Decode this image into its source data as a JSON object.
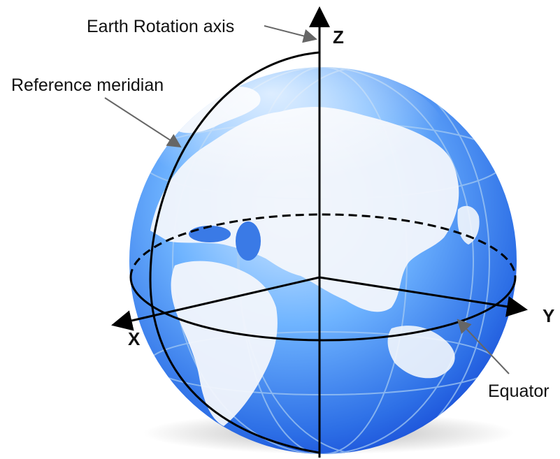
{
  "diagram": {
    "labels": {
      "rotation_axis": "Earth Rotation axis",
      "reference_meridian": "Reference meridian",
      "equator": "Equator",
      "axis_x": "X",
      "axis_y": "Y",
      "axis_z": "Z"
    },
    "colors": {
      "ocean_dark": "#1a4fd8",
      "ocean_light": "#6fb4ff",
      "land": "#f2f6fc",
      "lines": "#000000",
      "grid": "#9cc4ef"
    }
  }
}
